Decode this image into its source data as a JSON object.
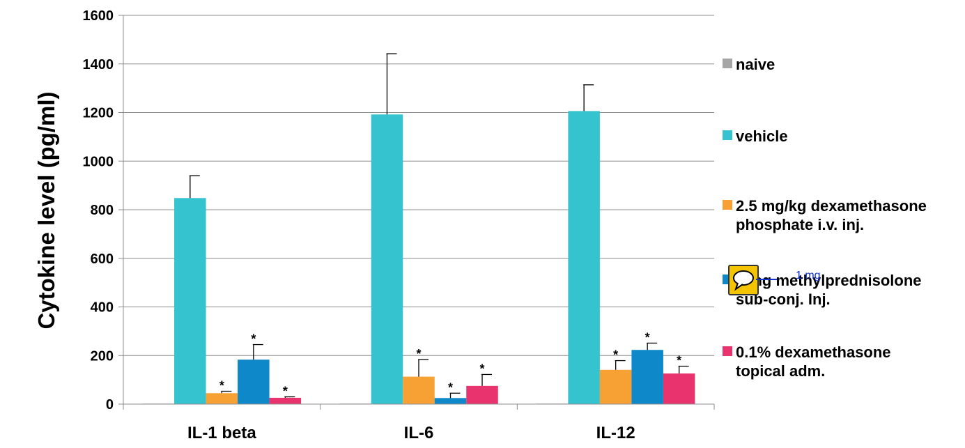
{
  "chart_data": {
    "type": "bar",
    "title": "",
    "xlabel": "",
    "ylabel": "Cytokine level (pg/ml)",
    "ylim": [
      0,
      1600
    ],
    "yticks": [
      0,
      200,
      400,
      600,
      800,
      1000,
      1200,
      1400,
      1600
    ],
    "grid": true,
    "legend_position": "right",
    "categories": [
      "IL-1 beta",
      "IL-6",
      "IL-12"
    ],
    "significance_marker": "*",
    "series": [
      {
        "name": "naive",
        "color": "#a6a6a6",
        "values": [
          2,
          2,
          2
        ],
        "errors": [
          0,
          0,
          0
        ],
        "significant": [
          false,
          false,
          false
        ]
      },
      {
        "name": "vehicle",
        "color": "#35c3d0",
        "values": [
          848,
          1192,
          1206
        ],
        "errors": [
          92,
          250,
          108
        ],
        "significant": [
          false,
          false,
          false
        ]
      },
      {
        "name": "2.5 mg/kg dexamethasone phosphate i.v. inj.",
        "color": "#f7a033",
        "values": [
          45,
          113,
          141
        ],
        "errors": [
          8,
          70,
          38
        ],
        "significant": [
          true,
          true,
          true
        ]
      },
      {
        "name": "1 mg methylprednisolone sub-conj. Inj.",
        "color": "#0e88c8",
        "values": [
          183,
          25,
          223
        ],
        "errors": [
          62,
          20,
          28
        ],
        "significant": [
          true,
          true,
          true
        ]
      },
      {
        "name": "0.1% dexamethasone topical adm.",
        "color": "#e8336e",
        "values": [
          26,
          75,
          126
        ],
        "errors": [
          4,
          47,
          30
        ],
        "significant": [
          true,
          true,
          true
        ]
      }
    ]
  },
  "annotation": {
    "icon": "comment-icon",
    "text": "1 mg"
  }
}
